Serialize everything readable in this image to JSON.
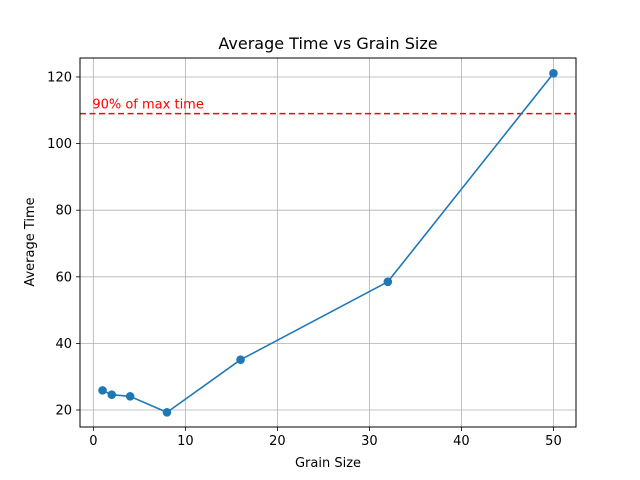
{
  "chart_data": {
    "type": "line",
    "title": "Average Time vs Grain Size",
    "xlabel": "Grain Size",
    "ylabel": "Average Time",
    "xlim": [
      -1.45,
      52.45
    ],
    "ylim": [
      14.9,
      125.7
    ],
    "xticks": [
      0,
      10,
      20,
      30,
      40,
      50
    ],
    "yticks": [
      20,
      40,
      60,
      80,
      100,
      120
    ],
    "grid": true,
    "series": [
      {
        "color": "#1f77b4",
        "marker": "circle",
        "x": [
          1,
          2,
          4,
          8,
          16,
          32,
          50
        ],
        "y": [
          25.9,
          24.6,
          24.1,
          19.3,
          35.1,
          58.5,
          121.1
        ]
      }
    ],
    "reference_line": {
      "label": "90% of max time",
      "y": 109.0,
      "color": "#ff0000",
      "style": "dashed"
    }
  }
}
